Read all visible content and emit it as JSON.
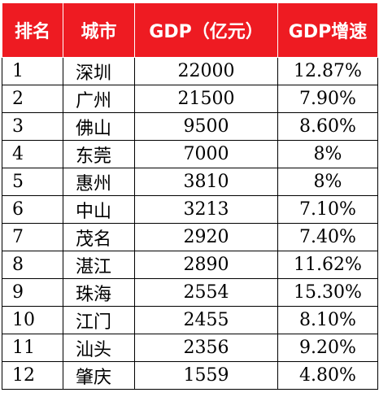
{
  "chart_data": {
    "type": "table",
    "columns": [
      "排名",
      "城市",
      "GDP（亿元）",
      "GDP增速"
    ],
    "rows": [
      {
        "rank": "1",
        "city": "深圳",
        "gdp": "22000",
        "growth": "12.87%"
      },
      {
        "rank": "2",
        "city": "广州",
        "gdp": "21500",
        "growth": "7.90%"
      },
      {
        "rank": "3",
        "city": "佛山",
        "gdp": "9500",
        "growth": "8.60%"
      },
      {
        "rank": "4",
        "city": "东莞",
        "gdp": "7000",
        "growth": "8%"
      },
      {
        "rank": "5",
        "city": "惠州",
        "gdp": "3810",
        "growth": "8%"
      },
      {
        "rank": "6",
        "city": "中山",
        "gdp": "3213",
        "growth": "7.10%"
      },
      {
        "rank": "7",
        "city": "茂名",
        "gdp": "2920",
        "growth": "7.40%"
      },
      {
        "rank": "8",
        "city": "湛江",
        "gdp": "2890",
        "growth": "11.62%"
      },
      {
        "rank": "9",
        "city": "珠海",
        "gdp": "2554",
        "growth": "15.30%"
      },
      {
        "rank": "10",
        "city": "江门",
        "gdp": "2455",
        "growth": "8.10%"
      },
      {
        "rank": "11",
        "city": "汕头",
        "gdp": "2356",
        "growth": "9.20%"
      },
      {
        "rank": "12",
        "city": "肇庆",
        "gdp": "1559",
        "growth": "4.80%"
      }
    ]
  },
  "colors": {
    "header_bg": "#ee1b22",
    "header_text": "#ffffff",
    "grid": "#000000"
  }
}
